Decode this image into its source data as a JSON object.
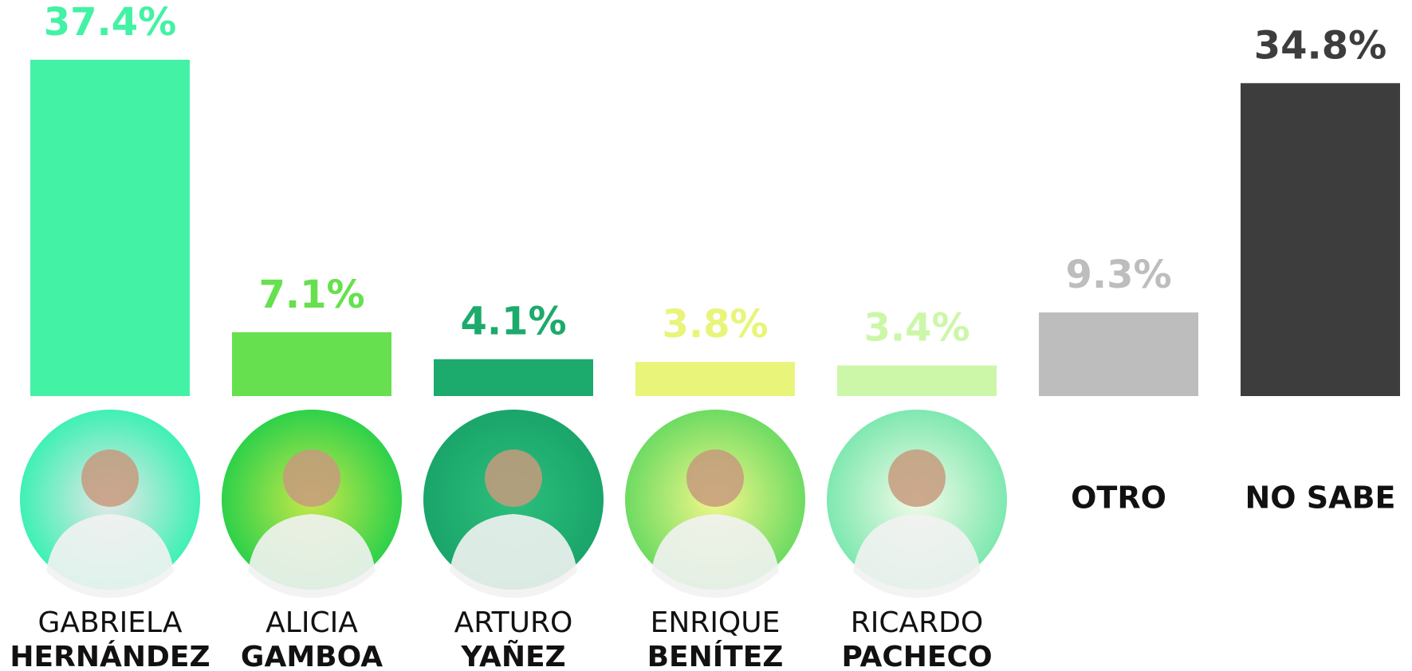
{
  "chart_data": {
    "type": "bar",
    "categories": [
      [
        "GABRIELA",
        "HERNÁNDEZ"
      ],
      [
        "ALICIA",
        "GAMBOA"
      ],
      [
        "ARTURO",
        "YAÑEZ"
      ],
      [
        "ENRIQUE",
        "BENÍTEZ"
      ],
      [
        "RICARDO",
        "PACHECO"
      ],
      [
        "OTRO"
      ],
      [
        "NO SABE"
      ]
    ],
    "values": [
      37.4,
      7.1,
      4.1,
      3.8,
      3.4,
      9.3,
      34.8
    ],
    "value_labels": [
      "37.4%",
      "7.1%",
      "4.1%",
      "3.8%",
      "3.4%",
      "9.3%",
      "34.8%"
    ],
    "colors": [
      "#43f2a4",
      "#66e04f",
      "#1daa6d",
      "#e8f57a",
      "#cdf7a8",
      "#bdbdbd",
      "#3d3d3d"
    ]
  }
}
